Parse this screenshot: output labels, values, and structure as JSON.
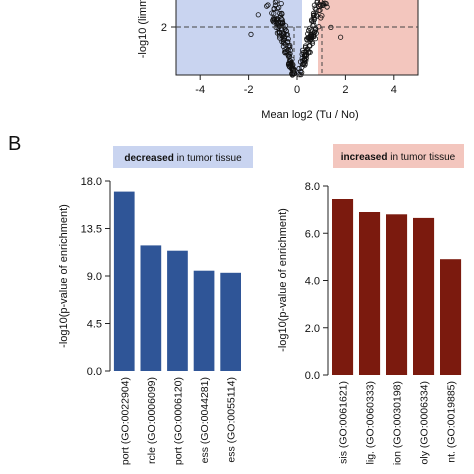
{
  "panel_b_label": "B",
  "colors": {
    "decreased_bar": "#2f5597",
    "increased_bar": "#7b1a0e",
    "decreased_banner": "#c9d4f0",
    "increased_banner": "#f3c6be"
  },
  "chart_data": [
    {
      "type": "scatter",
      "subtype": "volcano",
      "xlabel": "Mean log2 (Tu / No)",
      "ylabel": "-log10 (limm",
      "x_ticks": [
        -4,
        -2,
        0,
        2,
        4
      ],
      "x_tick_labels": [
        "-4",
        "-2",
        "0",
        "2",
        "4"
      ],
      "y_ticks": [
        2
      ],
      "y_tick_labels": [
        "2"
      ],
      "xlim": [
        -5,
        5
      ],
      "threshold_y": 2,
      "threshold_x": [
        -0.5,
        0.5
      ],
      "shading": {
        "left": "#c9d4f0",
        "right": "#f3c6be"
      }
    },
    {
      "type": "bar",
      "banner": {
        "bold": "decreased",
        "rest": " in tumor tissue"
      },
      "ylabel": "-log10(p-value of enrichment)",
      "ylim": [
        0,
        18
      ],
      "y_ticks": [
        0,
        4.5,
        9,
        13.5,
        18
      ],
      "y_tick_labels": [
        "0.0",
        "4.5",
        "9.0",
        "13.5",
        "18.0"
      ],
      "categories": [
        "port (GO:0022904)",
        "rcle (GO:0006099)",
        "port (GO:0006120)",
        "ess (GO:0044281)",
        "ess (GO:0055114)"
      ],
      "values": [
        17.0,
        11.9,
        11.4,
        9.5,
        9.3
      ]
    },
    {
      "type": "bar",
      "banner": {
        "bold": "increased",
        "rest": " in tumor tissue"
      },
      "ylabel": "-log10(p-value of enrichment)",
      "ylim": [
        0,
        8
      ],
      "y_ticks": [
        0,
        2,
        4,
        6,
        8
      ],
      "y_tick_labels": [
        "0.0",
        "2.0",
        "4.0",
        "6.0",
        "8.0"
      ],
      "categories": [
        "sis (GO:0061621)",
        "lig. (GO:0060333)",
        "ion (GO:0030198)",
        "oly (GO:0006334)",
        "nt. (GO:0019885)"
      ],
      "values": [
        7.45,
        6.9,
        6.8,
        6.65,
        4.9
      ]
    }
  ]
}
